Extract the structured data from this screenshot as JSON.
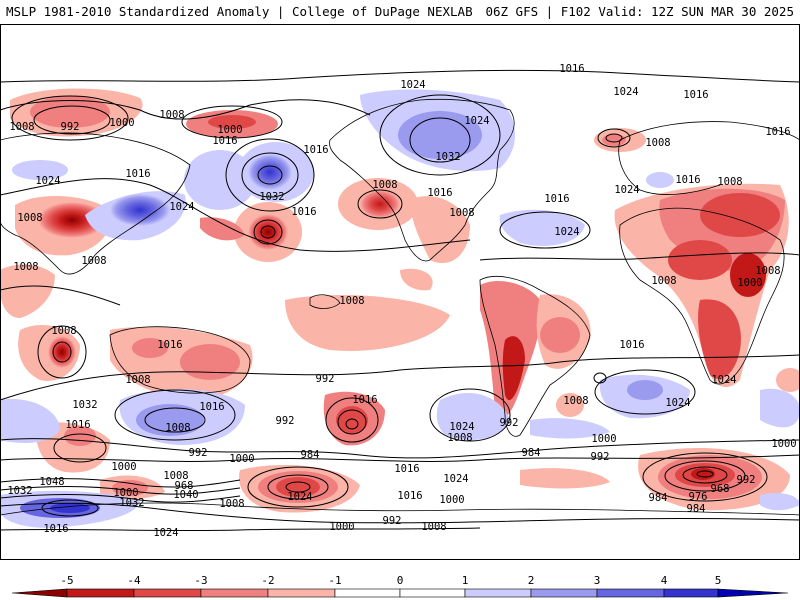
{
  "header": {
    "left_title": "MSLP 1981-2010 Standardized Anomaly | College of DuPage NEXLAB",
    "right_title": "06Z GFS | F102 Valid: 12Z SUN MAR 30 2025"
  },
  "colors": {
    "neg5": "#8b0000",
    "neg4": "#c21818",
    "neg3": "#e04848",
    "neg2": "#f08080",
    "neg1": "#fbb4a8",
    "zero": "#ffffff",
    "pos1": "#ccccff",
    "pos2": "#9a9aee",
    "pos3": "#6666e0",
    "pos4": "#3333d0",
    "pos5": "#0000b0",
    "land": "#000000",
    "isobar": "#000000"
  },
  "colorbar": {
    "ticks": [
      "-5",
      "-4",
      "-3",
      "-2",
      "-1",
      "0",
      "1",
      "2",
      "3",
      "4",
      "5"
    ]
  },
  "isobar_labels": [
    {
      "id": "l1",
      "text": "1016"
    },
    {
      "id": "l2",
      "text": "1024"
    },
    {
      "id": "l3",
      "text": "1024"
    },
    {
      "id": "l4",
      "text": "1016"
    },
    {
      "id": "l5",
      "text": "1008"
    },
    {
      "id": "l6",
      "text": "992"
    },
    {
      "id": "l7",
      "text": "1000"
    },
    {
      "id": "l8",
      "text": "1008"
    },
    {
      "id": "l9",
      "text": "1000"
    },
    {
      "id": "l10",
      "text": "1024"
    },
    {
      "id": "l11",
      "text": "1016"
    },
    {
      "id": "l12",
      "text": "1016"
    },
    {
      "id": "l13",
      "text": "1032"
    },
    {
      "id": "l14",
      "text": "1008"
    },
    {
      "id": "l15",
      "text": "1016"
    },
    {
      "id": "l16",
      "text": "1016"
    },
    {
      "id": "l17",
      "text": "1024"
    },
    {
      "id": "l18",
      "text": "1032"
    },
    {
      "id": "l19",
      "text": "1024"
    },
    {
      "id": "l20",
      "text": "1008"
    },
    {
      "id": "l21",
      "text": "1016"
    },
    {
      "id": "l22",
      "text": "1008"
    },
    {
      "id": "l23",
      "text": "1008"
    },
    {
      "id": "l24",
      "text": "1016"
    },
    {
      "id": "l25",
      "text": "1024"
    },
    {
      "id": "l26",
      "text": "1016"
    },
    {
      "id": "l27",
      "text": "1008"
    },
    {
      "id": "l28",
      "text": "1016"
    },
    {
      "id": "l29",
      "text": "1024"
    },
    {
      "id": "l30",
      "text": "1008"
    },
    {
      "id": "l31",
      "text": "1008"
    },
    {
      "id": "l32",
      "text": "1008"
    },
    {
      "id": "l33",
      "text": "1008"
    },
    {
      "id": "l34",
      "text": "1000"
    },
    {
      "id": "l35",
      "text": "1008"
    },
    {
      "id": "l36",
      "text": "1008"
    },
    {
      "id": "l37",
      "text": "1016"
    },
    {
      "id": "l38",
      "text": "1016"
    },
    {
      "id": "l39",
      "text": "1008"
    },
    {
      "id": "l40",
      "text": "992"
    },
    {
      "id": "l41",
      "text": "1024"
    },
    {
      "id": "l42",
      "text": "1032"
    },
    {
      "id": "l43",
      "text": "1016"
    },
    {
      "id": "l44",
      "text": "1008"
    },
    {
      "id": "l45",
      "text": "1024"
    },
    {
      "id": "l46",
      "text": "1016"
    },
    {
      "id": "l47",
      "text": "1008"
    },
    {
      "id": "l48",
      "text": "992"
    },
    {
      "id": "l49",
      "text": "1024"
    },
    {
      "id": "l50",
      "text": "1016"
    },
    {
      "id": "l51",
      "text": "1008"
    },
    {
      "id": "l52",
      "text": "992"
    },
    {
      "id": "l53",
      "text": "1000"
    },
    {
      "id": "l54",
      "text": "1000"
    },
    {
      "id": "l55",
      "text": "984"
    },
    {
      "id": "l56",
      "text": "992"
    },
    {
      "id": "l57",
      "text": "1000"
    },
    {
      "id": "l58",
      "text": "984"
    },
    {
      "id": "l59",
      "text": "992"
    },
    {
      "id": "l60",
      "text": "1016"
    },
    {
      "id": "l61",
      "text": "1000"
    },
    {
      "id": "l62",
      "text": "1008"
    },
    {
      "id": "l63",
      "text": "1024"
    },
    {
      "id": "l64",
      "text": "1048"
    },
    {
      "id": "l65",
      "text": "1032"
    },
    {
      "id": "l66",
      "text": "968"
    },
    {
      "id": "l67",
      "text": "1000"
    },
    {
      "id": "l68",
      "text": "1040"
    },
    {
      "id": "l69",
      "text": "1032"
    },
    {
      "id": "l70",
      "text": "1024"
    },
    {
      "id": "l71",
      "text": "1008"
    },
    {
      "id": "l72",
      "text": "1016"
    },
    {
      "id": "l73",
      "text": "1000"
    },
    {
      "id": "l74",
      "text": "992"
    },
    {
      "id": "l75",
      "text": "984"
    },
    {
      "id": "l76",
      "text": "976"
    },
    {
      "id": "l77",
      "text": "968"
    },
    {
      "id": "l78",
      "text": "992"
    },
    {
      "id": "l79",
      "text": "984"
    },
    {
      "id": "l80",
      "text": "1000"
    },
    {
      "id": "l81",
      "text": "1008"
    },
    {
      "id": "l82",
      "text": "1016"
    },
    {
      "id": "l83",
      "text": "1024"
    }
  ]
}
